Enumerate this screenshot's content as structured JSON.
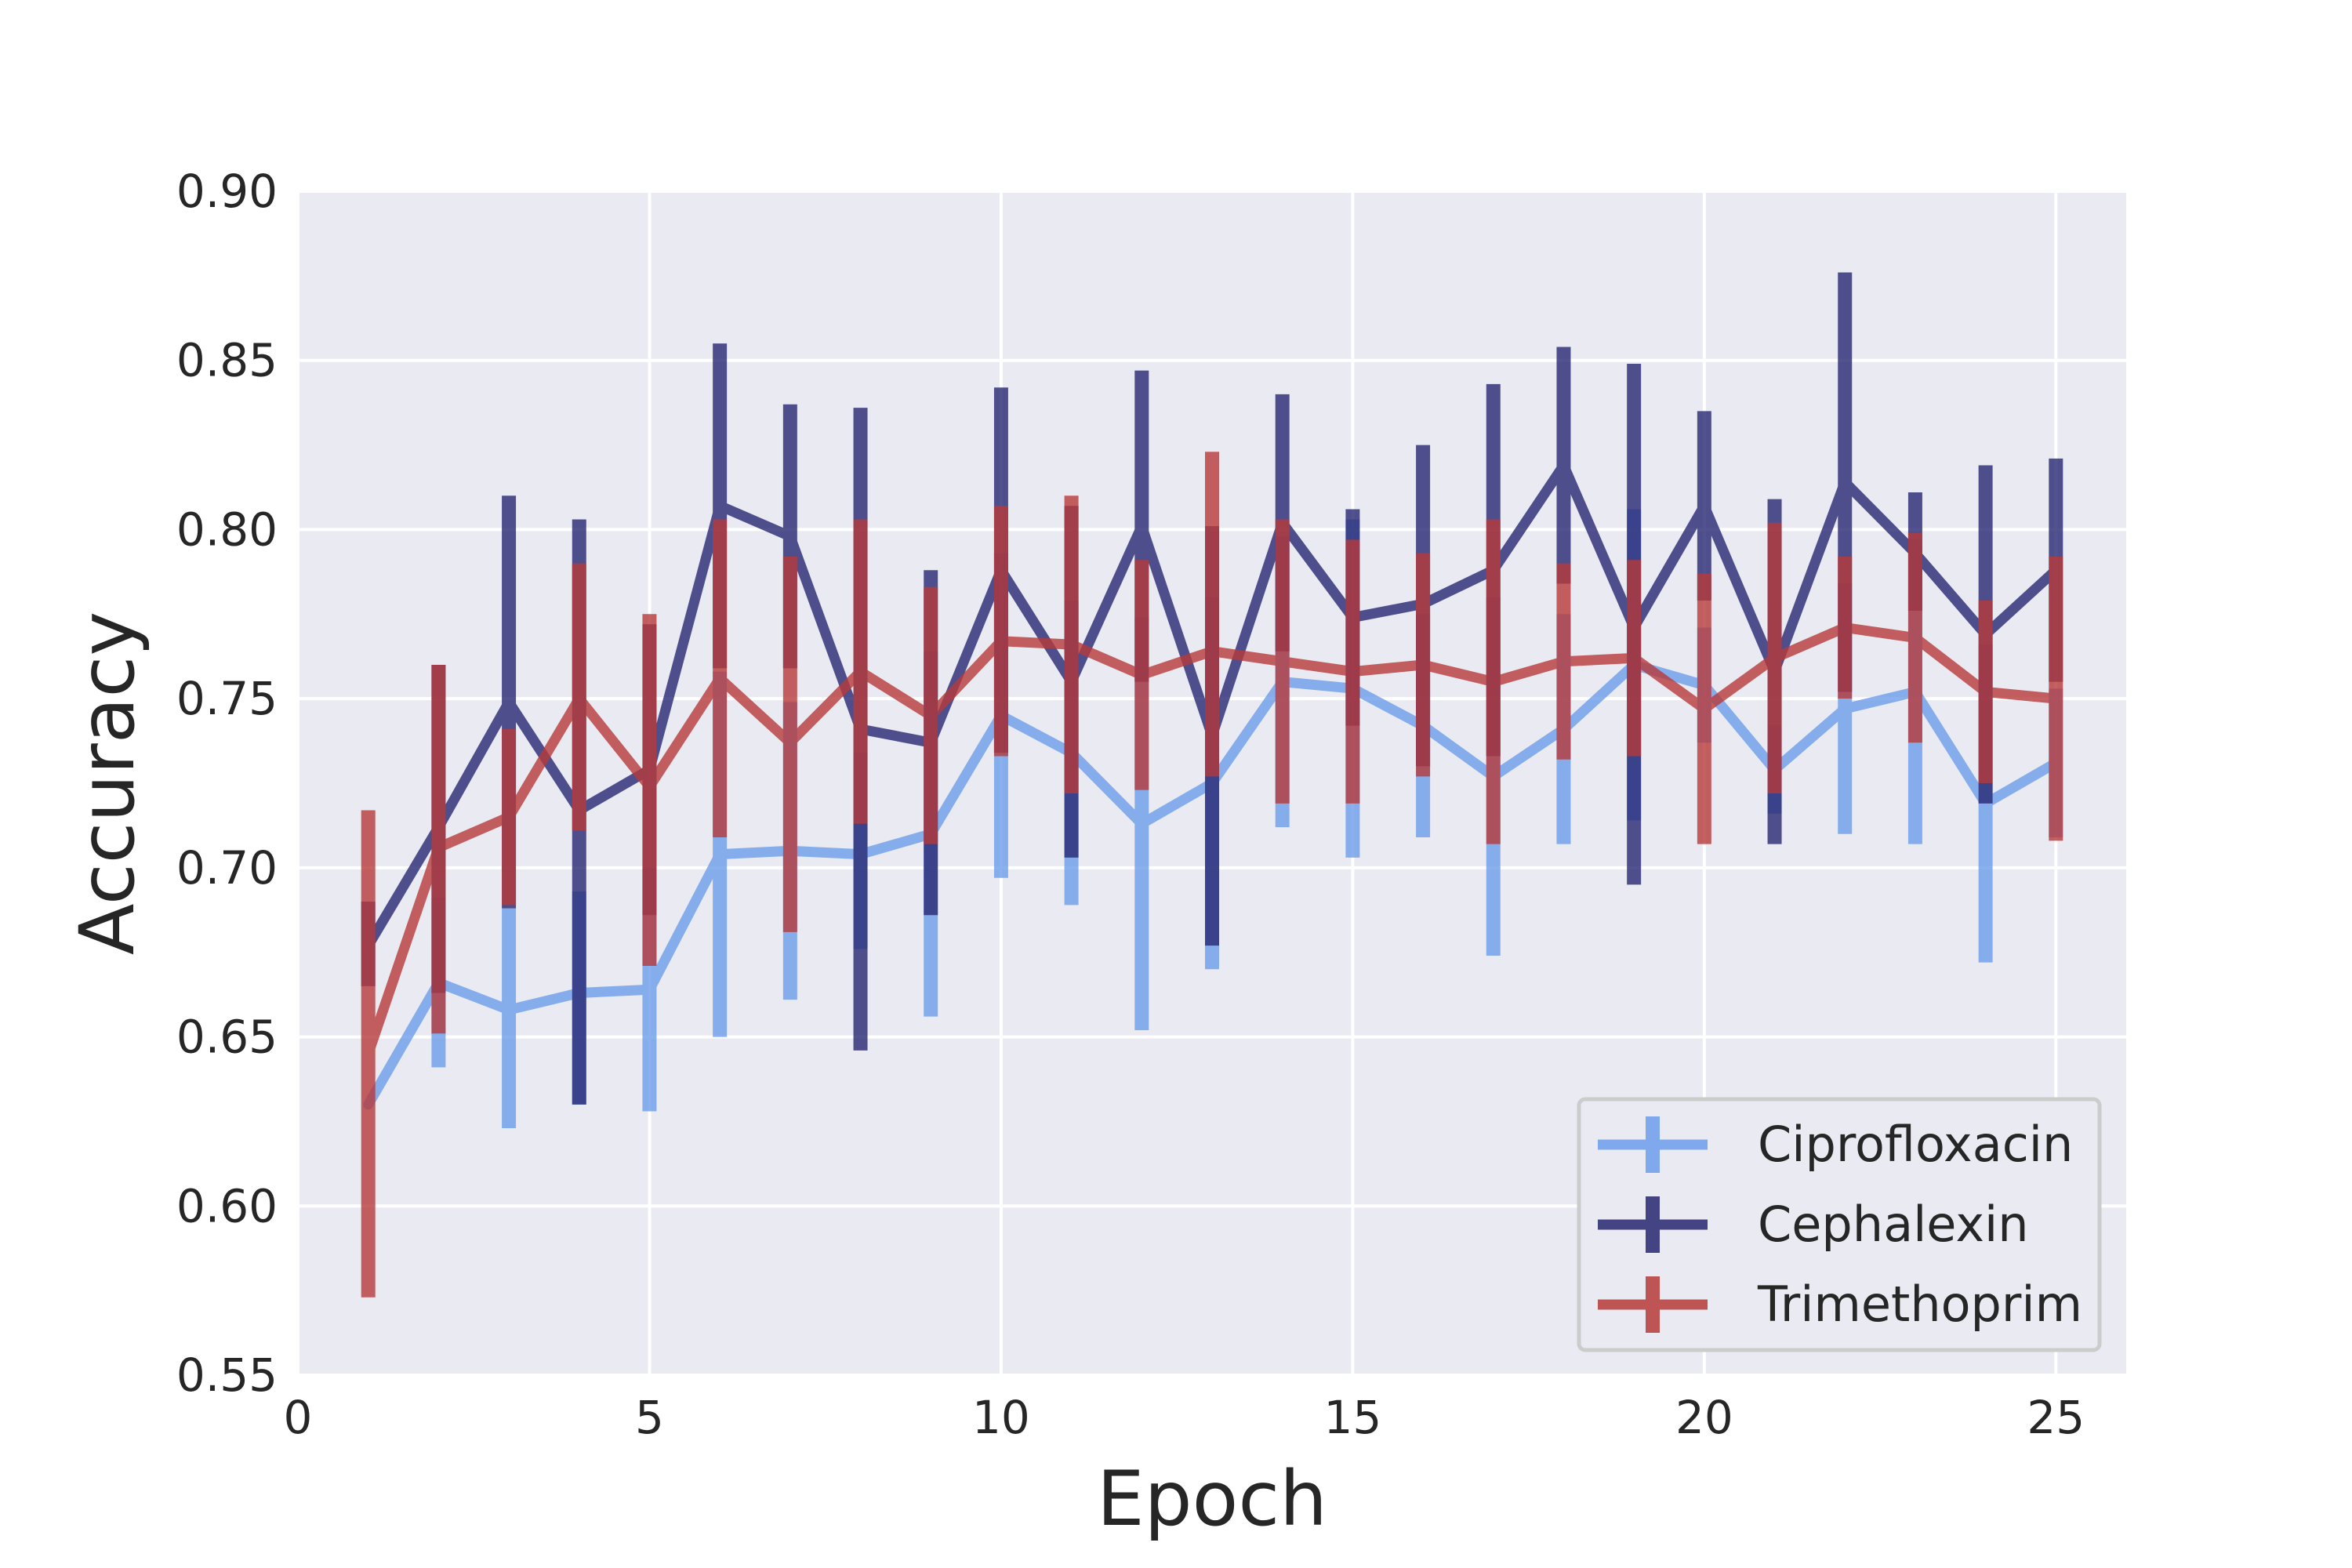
{
  "chart_data": {
    "type": "line",
    "title": "",
    "xlabel": "Epoch",
    "ylabel": "Accuracy",
    "xlim": [
      0,
      26
    ],
    "ylim": [
      0.55,
      0.9
    ],
    "xticks": [
      0,
      5,
      10,
      15,
      20,
      25
    ],
    "yticks": [
      0.55,
      0.6,
      0.65,
      0.7,
      0.75,
      0.8,
      0.85,
      0.9
    ],
    "xtick_labels": [
      "0",
      "5",
      "10",
      "15",
      "20",
      "25"
    ],
    "ytick_labels": [
      "0.55",
      "0.60",
      "0.65",
      "0.70",
      "0.75",
      "0.80",
      "0.85",
      "0.90"
    ],
    "grid": true,
    "legend_position": "bottom-right",
    "x": [
      1,
      2,
      3,
      4,
      5,
      6,
      7,
      8,
      9,
      10,
      11,
      12,
      13,
      14,
      15,
      16,
      17,
      18,
      19,
      20,
      21,
      22,
      23,
      24,
      25
    ],
    "series": [
      {
        "name": "Ciprofloxacin",
        "color": "#6d9eeb",
        "values": [
          0.63,
          0.666,
          0.658,
          0.663,
          0.664,
          0.704,
          0.705,
          0.704,
          0.71,
          0.745,
          0.734,
          0.713,
          0.725,
          0.755,
          0.753,
          0.742,
          0.727,
          0.741,
          0.76,
          0.754,
          0.729,
          0.747,
          0.752,
          0.719,
          0.731
        ],
        "lower": [
          0.63,
          0.641,
          0.623,
          0.63,
          0.628,
          0.65,
          0.661,
          0.676,
          0.656,
          0.697,
          0.689,
          0.652,
          0.67,
          0.712,
          0.703,
          0.709,
          0.674,
          0.707,
          0.714,
          0.737,
          0.716,
          0.71,
          0.707,
          0.672,
          0.709
        ],
        "upper": [
          0.63,
          0.691,
          0.688,
          0.693,
          0.7,
          0.758,
          0.749,
          0.734,
          0.764,
          0.793,
          0.779,
          0.774,
          0.78,
          0.798,
          0.803,
          0.775,
          0.78,
          0.775,
          0.806,
          0.771,
          0.742,
          0.784,
          0.797,
          0.766,
          0.753
        ]
      },
      {
        "name": "Cephalexin",
        "color": "#282873",
        "values": [
          0.677,
          0.712,
          0.749,
          0.717,
          0.729,
          0.807,
          0.798,
          0.741,
          0.737,
          0.788,
          0.755,
          0.801,
          0.739,
          0.802,
          0.774,
          0.778,
          0.788,
          0.819,
          0.771,
          0.807,
          0.758,
          0.814,
          0.793,
          0.769,
          0.788
        ],
        "lower": [
          0.665,
          0.663,
          0.688,
          0.63,
          0.686,
          0.759,
          0.759,
          0.646,
          0.686,
          0.734,
          0.703,
          0.755,
          0.677,
          0.764,
          0.742,
          0.73,
          0.733,
          0.784,
          0.695,
          0.779,
          0.707,
          0.752,
          0.776,
          0.719,
          0.755
        ],
        "upper": [
          0.69,
          0.76,
          0.81,
          0.803,
          0.772,
          0.855,
          0.837,
          0.836,
          0.788,
          0.842,
          0.807,
          0.847,
          0.801,
          0.84,
          0.806,
          0.825,
          0.843,
          0.854,
          0.849,
          0.835,
          0.809,
          0.876,
          0.811,
          0.819,
          0.821
        ]
      },
      {
        "name": "Trimethoprim",
        "color": "#b83a3a",
        "values": [
          0.645,
          0.706,
          0.715,
          0.75,
          0.724,
          0.756,
          0.737,
          0.758,
          0.745,
          0.767,
          0.766,
          0.757,
          0.764,
          0.761,
          0.758,
          0.76,
          0.755,
          0.761,
          0.762,
          0.747,
          0.762,
          0.771,
          0.768,
          0.752,
          0.75
        ],
        "lower": [
          0.573,
          0.651,
          0.689,
          0.711,
          0.671,
          0.709,
          0.681,
          0.713,
          0.707,
          0.733,
          0.722,
          0.723,
          0.727,
          0.719,
          0.719,
          0.727,
          0.707,
          0.732,
          0.733,
          0.707,
          0.722,
          0.75,
          0.737,
          0.725,
          0.708
        ],
        "upper": [
          0.717,
          0.76,
          0.741,
          0.79,
          0.775,
          0.803,
          0.792,
          0.803,
          0.783,
          0.807,
          0.81,
          0.791,
          0.823,
          0.803,
          0.797,
          0.793,
          0.803,
          0.79,
          0.791,
          0.787,
          0.802,
          0.792,
          0.799,
          0.779,
          0.792
        ]
      }
    ]
  }
}
